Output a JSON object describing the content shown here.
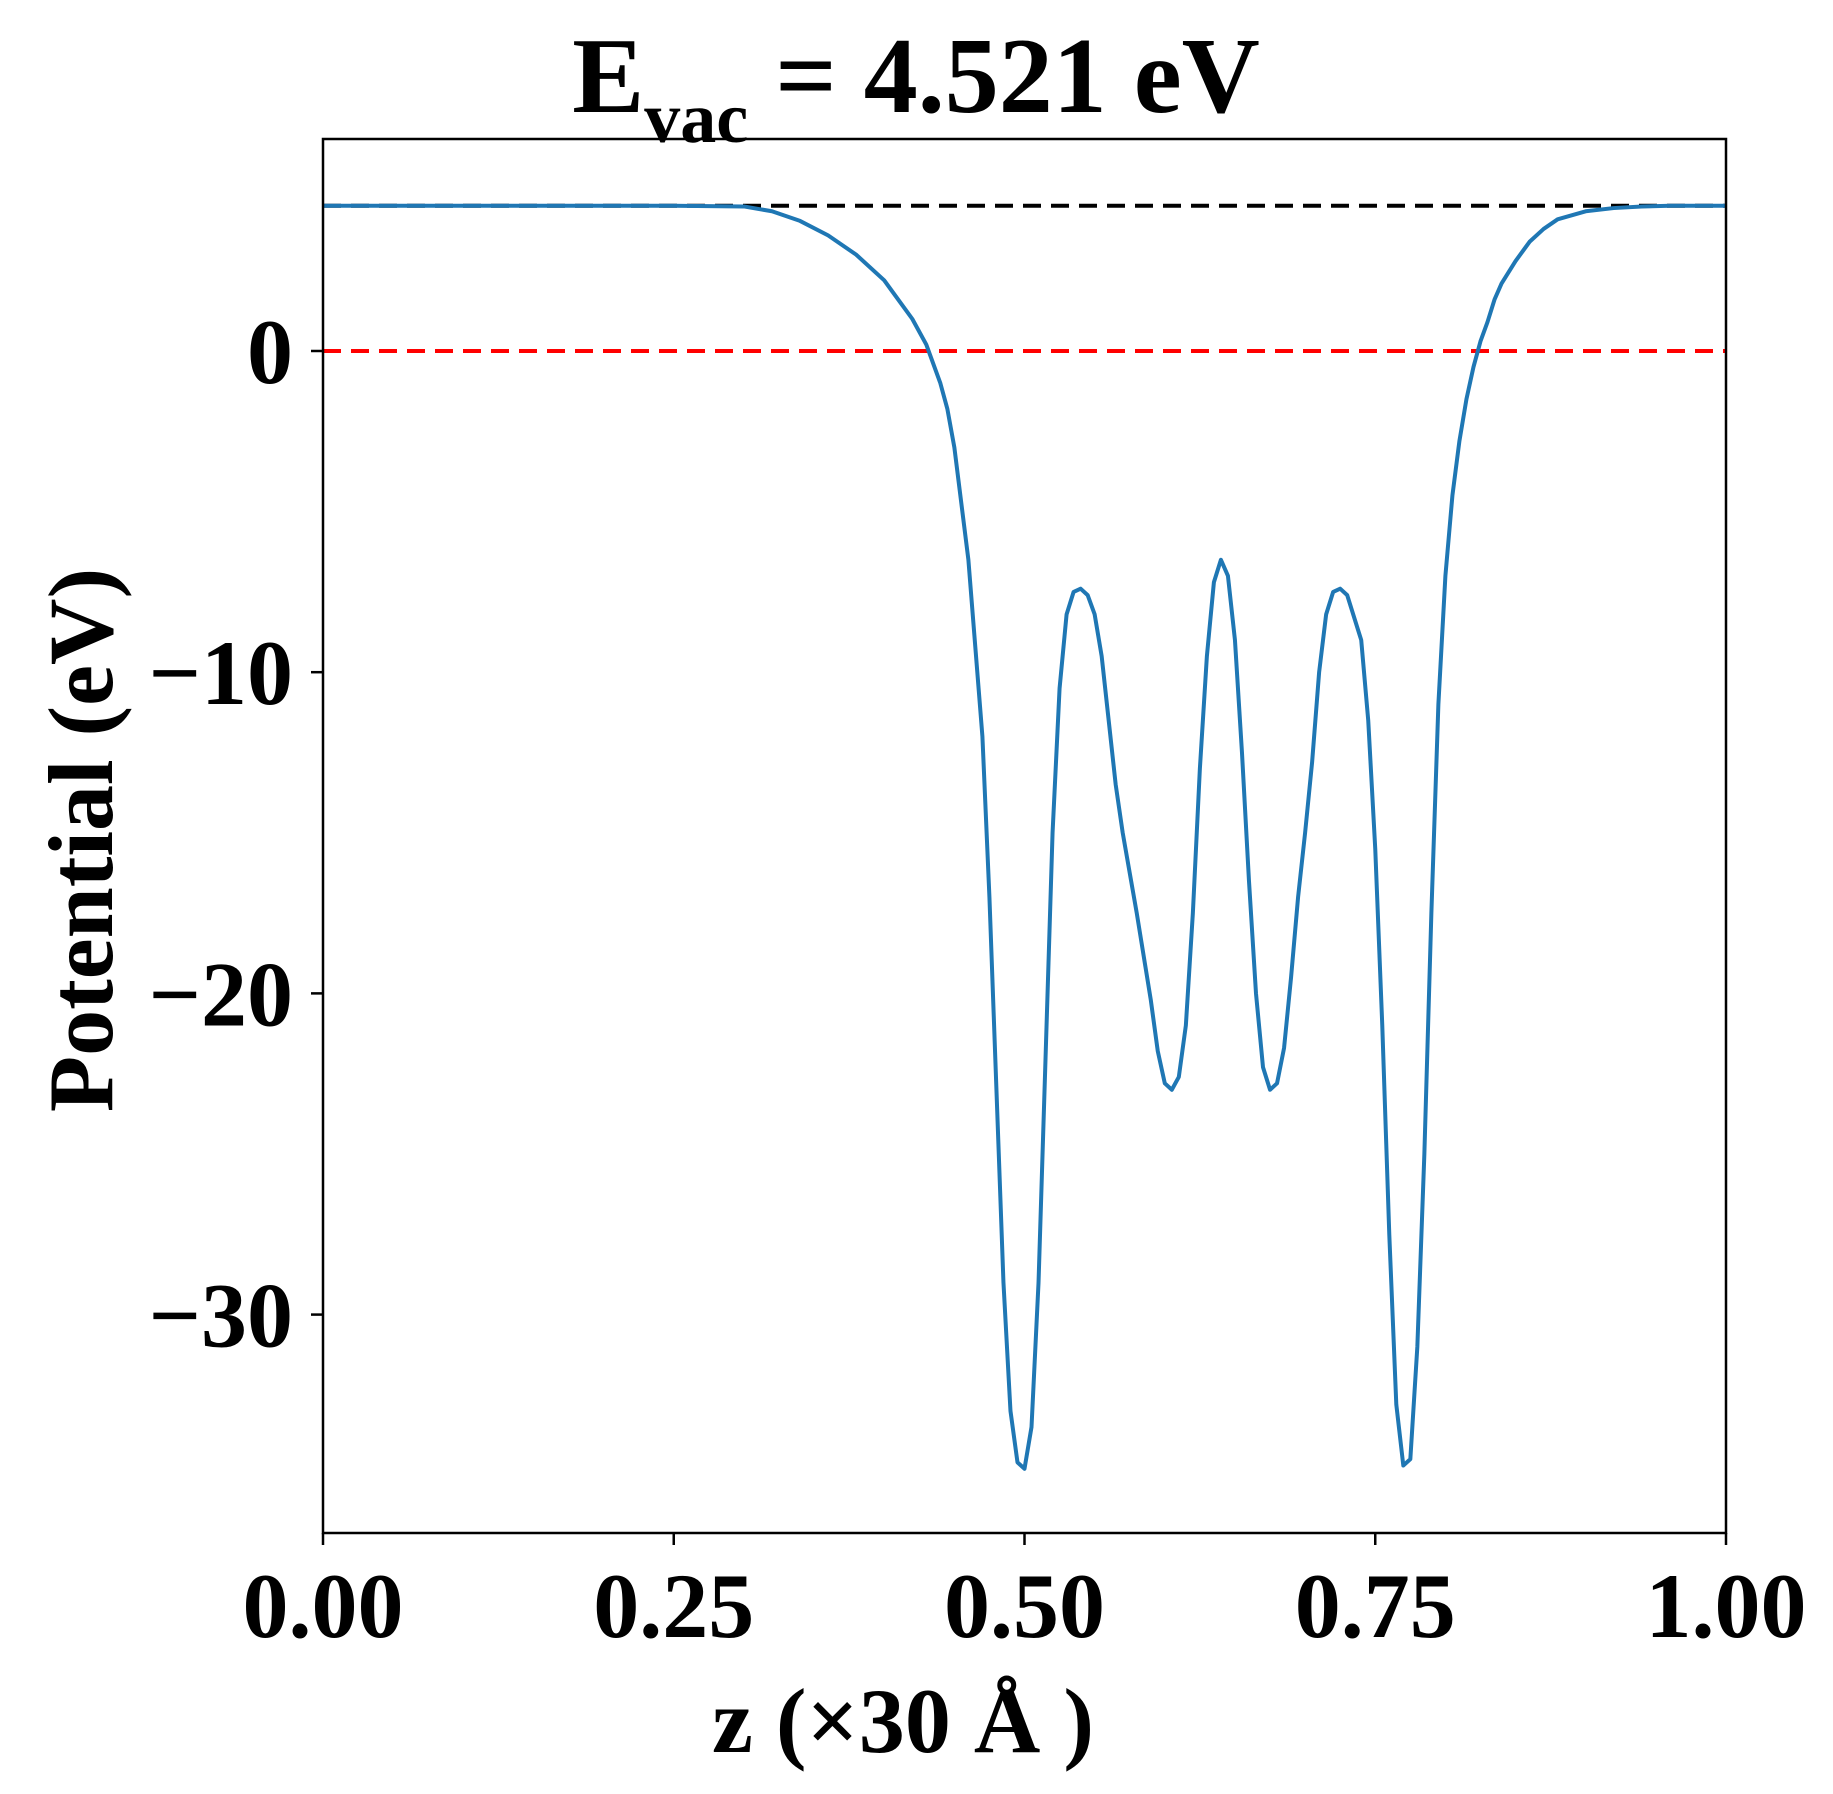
{
  "chart_data": {
    "type": "line",
    "title_main": "E",
    "title_sub": "vac",
    "title_rest": " = 4.521 eV",
    "xlabel": "z (×30 Å )",
    "ylabel": "Potential (eV)",
    "xlim": [
      0.0,
      1.0
    ],
    "ylim": [
      -36.8,
      6.6
    ],
    "xticks": [
      0.0,
      0.25,
      0.5,
      0.75,
      1.0
    ],
    "xtick_labels": [
      "0.00",
      "0.25",
      "0.50",
      "0.75",
      "1.00"
    ],
    "yticks": [
      0,
      -10,
      -20,
      -30
    ],
    "ytick_labels": [
      "0",
      "−10",
      "−20",
      "−30"
    ],
    "grid": false,
    "hlines": [
      {
        "y": 4.521,
        "color": "#000000",
        "style": "dashed",
        "width": 4
      },
      {
        "y": 0,
        "color": "#ff0000",
        "style": "dashed",
        "width": 4
      }
    ],
    "series": [
      {
        "color": "#1f77b4",
        "x": [
          0.0,
          0.05,
          0.1,
          0.15,
          0.2,
          0.25,
          0.3,
          0.32,
          0.34,
          0.36,
          0.38,
          0.4,
          0.42,
          0.43,
          0.44,
          0.445,
          0.45,
          0.46,
          0.47,
          0.475,
          0.48,
          0.485,
          0.49,
          0.495,
          0.5,
          0.505,
          0.51,
          0.515,
          0.52,
          0.525,
          0.53,
          0.535,
          0.54,
          0.545,
          0.55,
          0.555,
          0.56,
          0.565,
          0.57,
          0.58,
          0.59,
          0.595,
          0.6,
          0.605,
          0.61,
          0.615,
          0.62,
          0.625,
          0.63,
          0.635,
          0.64,
          0.645,
          0.65,
          0.655,
          0.66,
          0.665,
          0.67,
          0.675,
          0.68,
          0.685,
          0.69,
          0.695,
          0.7,
          0.705,
          0.71,
          0.715,
          0.72,
          0.725,
          0.73,
          0.74,
          0.745,
          0.75,
          0.755,
          0.76,
          0.765,
          0.77,
          0.775,
          0.78,
          0.785,
          0.79,
          0.795,
          0.8,
          0.805,
          0.81,
          0.815,
          0.82,
          0.825,
          0.83,
          0.835,
          0.84,
          0.845,
          0.85,
          0.86,
          0.87,
          0.88,
          0.9,
          0.92,
          0.94,
          0.96,
          0.98,
          1.0
        ],
        "y": [
          4.52,
          4.52,
          4.52,
          4.52,
          4.52,
          4.52,
          4.5,
          4.35,
          4.05,
          3.6,
          3.0,
          2.2,
          1.0,
          0.2,
          -1.0,
          -1.8,
          -3.0,
          -6.5,
          -12.0,
          -17.0,
          -23.0,
          -29.0,
          -33.0,
          -34.6,
          -34.8,
          -33.5,
          -29.0,
          -22.0,
          -15.0,
          -10.5,
          -8.2,
          -7.5,
          -7.4,
          -7.6,
          -8.2,
          -9.5,
          -11.5,
          -13.5,
          -15.0,
          -17.5,
          -20.2,
          -21.8,
          -22.8,
          -23.0,
          -22.6,
          -21.0,
          -17.5,
          -13.0,
          -9.5,
          -7.2,
          -6.5,
          -7.0,
          -9.0,
          -12.5,
          -16.5,
          -20.0,
          -22.3,
          -23.0,
          -22.8,
          -21.7,
          -19.5,
          -17.0,
          -15.0,
          -12.8,
          -10.0,
          -8.2,
          -7.5,
          -7.4,
          -7.6,
          -9.0,
          -11.5,
          -15.5,
          -21.0,
          -27.5,
          -32.8,
          -34.7,
          -34.5,
          -31.0,
          -25.0,
          -17.5,
          -11.0,
          -7.0,
          -4.5,
          -2.8,
          -1.5,
          -0.5,
          0.3,
          0.9,
          1.6,
          2.1,
          2.45,
          2.8,
          3.4,
          3.8,
          4.1,
          4.35,
          4.45,
          4.5,
          4.52,
          4.52,
          4.52
        ]
      }
    ]
  }
}
